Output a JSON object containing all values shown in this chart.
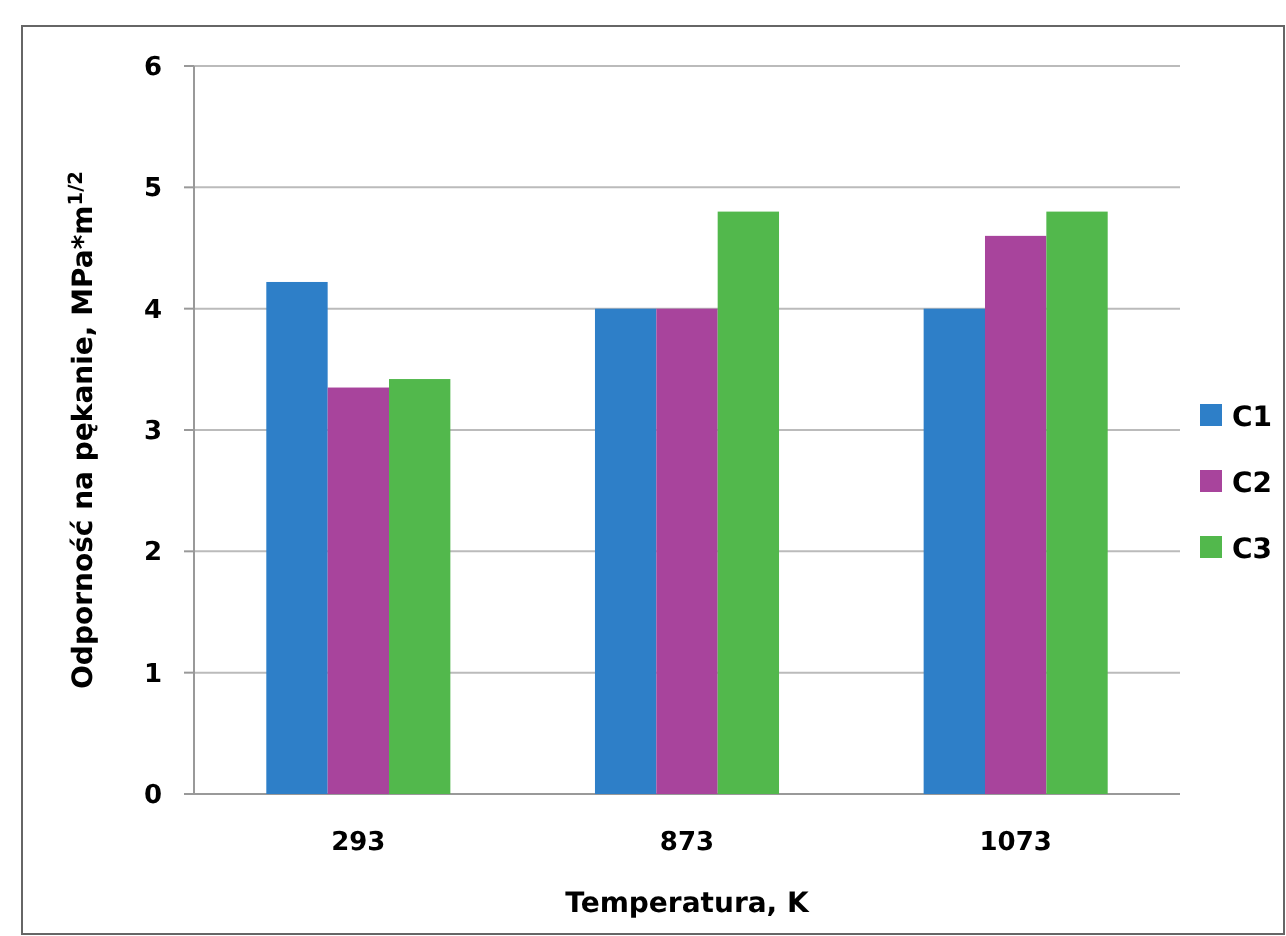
{
  "chart_data": {
    "type": "bar",
    "categories": [
      "293",
      "873",
      "1073"
    ],
    "series": [
      {
        "name": "C1",
        "color": "#2e7fc8",
        "values": [
          4.22,
          4.0,
          4.0
        ]
      },
      {
        "name": "C2",
        "color": "#a8449c",
        "values": [
          3.35,
          4.0,
          4.6
        ]
      },
      {
        "name": "C3",
        "color": "#52b84c",
        "values": [
          3.42,
          4.8,
          4.8
        ]
      }
    ],
    "xlabel": "Temperatura, K",
    "ylabel": "Odporność na pękanie,   MPa*m$^{1/2}$",
    "ylim": [
      0,
      6
    ],
    "yticks": [
      0,
      1,
      2,
      3,
      4,
      5,
      6
    ],
    "grid": "y",
    "legend": "right"
  }
}
